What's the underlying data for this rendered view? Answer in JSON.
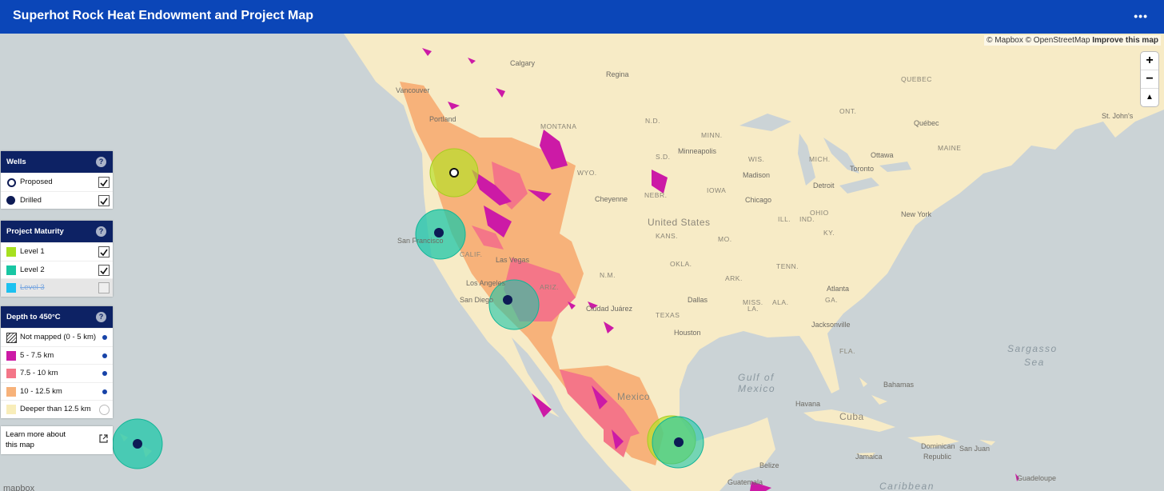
{
  "header": {
    "title": "Superhot Rock Heat Endowment and Project Map",
    "menu": "•••"
  },
  "attribution": {
    "mapbox": "© Mapbox",
    "osm": "© OpenStreetMap",
    "improve": "Improve this map",
    "logo": "mapbox"
  },
  "controls": {
    "zoom_in": "+",
    "zoom_out": "−",
    "north": "▲"
  },
  "panels": [
    {
      "title": "Wells",
      "help": "?",
      "items": [
        {
          "label": "Proposed"
        },
        {
          "label": "Drilled"
        }
      ]
    },
    {
      "title": "Project Maturity",
      "help": "?",
      "items": [
        {
          "label": "Level 1"
        },
        {
          "label": "Level 2"
        },
        {
          "label": "Level 3"
        }
      ]
    },
    {
      "title": "Depth to 450°C",
      "help": "?",
      "items": [
        {
          "label": "Not mapped (0 - 5 km)"
        },
        {
          "label": "5 - 7.5 km"
        },
        {
          "label": "7.5 - 10 km"
        },
        {
          "label": "10 - 12.5 km"
        },
        {
          "label": "Deeper than 12.5 km"
        }
      ]
    }
  ],
  "learn_more": {
    "line1": "Learn more about",
    "line2": "this map"
  },
  "map_labels": [
    "Calgary",
    "Regina",
    "Vancouver",
    "Portland",
    "MONTANA",
    "WYO.",
    "N.D.",
    "S.D.",
    "MINN.",
    "Minneapolis",
    "Cheyenne",
    "NEBR.",
    "IOWA",
    "United States",
    "KANS.",
    "MO.",
    "Chicago",
    "Madison",
    "WIS.",
    "MICH.",
    "Detroit",
    "Toronto",
    "Ottawa",
    "QUEBEC",
    "Québec",
    "MAINE",
    "St. John's",
    "New York",
    "ILL.",
    "IND.",
    "OHIO",
    "KY.",
    "TENN.",
    "San Francisco",
    "CALIF.",
    "Las Vegas",
    "Los Angeles",
    "San Diego",
    "ARIZ.",
    "N.M.",
    "OKLA.",
    "ARK.",
    "Ciudad Juárez",
    "Dallas",
    "TEXAS",
    "Houston",
    "LA.",
    "MISS.",
    "ALA.",
    "GA.",
    "Atlanta",
    "Jacksonville",
    "FLA.",
    "Gulf of",
    "Mexico",
    "Mexico",
    "Sargasso",
    "Sea",
    "Havana",
    "Cuba",
    "Bahamas",
    "Jamaica",
    "Dominican",
    "Republic",
    "San Juan",
    "Belize",
    "Guatemala",
    "Guadeloupe",
    "Caribbean",
    "ONT."
  ]
}
